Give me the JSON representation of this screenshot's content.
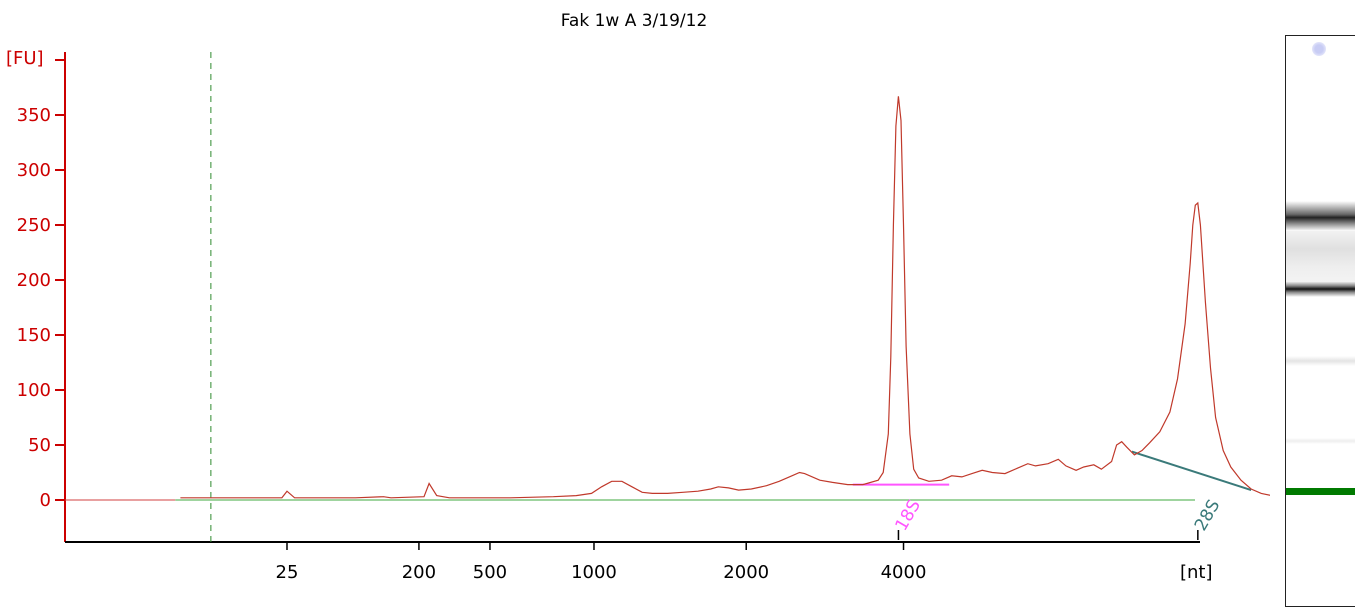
{
  "chart_data": {
    "type": "line",
    "title": "Fak 1w A 3/19/12",
    "ylabel": "[FU]",
    "xlabel": "[nt]",
    "ylim": [
      -37,
      372
    ],
    "y_ticks": [
      0,
      50,
      100,
      150,
      200,
      250,
      300,
      350
    ],
    "x_ticks": [
      "25",
      "200",
      "500",
      "1000",
      "2000",
      "4000"
    ],
    "x_tick_time_s": [
      24.2,
      29.4,
      32.2,
      36.3,
      42.3,
      48.5
    ],
    "xlim_time_s": [
      17.5,
      59.2
    ],
    "x_axis_unit": "time-scale (nt labels at ladder positions)",
    "series": [
      {
        "color": "#c0392b",
        "points": [
          [
            20.0,
            2
          ],
          [
            24.0,
            2
          ],
          [
            24.2,
            8
          ],
          [
            24.5,
            2
          ],
          [
            26.9,
            2
          ],
          [
            28.0,
            3
          ],
          [
            28.3,
            2
          ],
          [
            29.6,
            3
          ],
          [
            29.8,
            15
          ],
          [
            30.1,
            4
          ],
          [
            30.6,
            2
          ],
          [
            33.0,
            2
          ],
          [
            34.7,
            3
          ],
          [
            35.6,
            4
          ],
          [
            36.2,
            6
          ],
          [
            36.6,
            12
          ],
          [
            37.0,
            17
          ],
          [
            37.4,
            17
          ],
          [
            37.8,
            12
          ],
          [
            38.2,
            7
          ],
          [
            38.6,
            6
          ],
          [
            39.2,
            6
          ],
          [
            39.8,
            7
          ],
          [
            40.4,
            8
          ],
          [
            40.9,
            10
          ],
          [
            41.2,
            12
          ],
          [
            41.6,
            11
          ],
          [
            42.0,
            9
          ],
          [
            42.5,
            10
          ],
          [
            43.1,
            13
          ],
          [
            43.6,
            17
          ],
          [
            44.1,
            22
          ],
          [
            44.4,
            25
          ],
          [
            44.6,
            24
          ],
          [
            45.2,
            18
          ],
          [
            45.7,
            16
          ],
          [
            46.3,
            14
          ],
          [
            46.9,
            14
          ],
          [
            47.5,
            18
          ],
          [
            47.7,
            25
          ],
          [
            47.9,
            60
          ],
          [
            48.0,
            130
          ],
          [
            48.1,
            250
          ],
          [
            48.2,
            340
          ],
          [
            48.3,
            367
          ],
          [
            48.4,
            345
          ],
          [
            48.5,
            250
          ],
          [
            48.6,
            140
          ],
          [
            48.75,
            60
          ],
          [
            48.9,
            28
          ],
          [
            49.1,
            20
          ],
          [
            49.5,
            17
          ],
          [
            50.0,
            18
          ],
          [
            50.4,
            22
          ],
          [
            50.8,
            21
          ],
          [
            51.2,
            24
          ],
          [
            51.6,
            27
          ],
          [
            52.0,
            25
          ],
          [
            52.5,
            24
          ],
          [
            53.0,
            29
          ],
          [
            53.4,
            33
          ],
          [
            53.7,
            31
          ],
          [
            54.2,
            33
          ],
          [
            54.6,
            37
          ],
          [
            54.9,
            31
          ],
          [
            55.3,
            27
          ],
          [
            55.6,
            30
          ],
          [
            56.0,
            32
          ],
          [
            56.3,
            28
          ],
          [
            56.7,
            35
          ],
          [
            56.9,
            50
          ],
          [
            57.1,
            53
          ],
          [
            57.3,
            48
          ],
          [
            57.6,
            41
          ],
          [
            57.9,
            45
          ],
          [
            58.2,
            52
          ],
          [
            58.6,
            62
          ],
          [
            59.0,
            80
          ],
          [
            59.3,
            110
          ],
          [
            59.6,
            160
          ],
          [
            59.8,
            215
          ],
          [
            59.9,
            250
          ],
          [
            60.0,
            268
          ],
          [
            60.1,
            270
          ],
          [
            60.2,
            250
          ],
          [
            60.4,
            180
          ],
          [
            60.6,
            120
          ],
          [
            60.8,
            75
          ],
          [
            61.1,
            45
          ],
          [
            61.4,
            30
          ],
          [
            61.8,
            18
          ],
          [
            62.2,
            10
          ],
          [
            62.6,
            6
          ],
          [
            63.0,
            4
          ],
          [
            63.3,
            3
          ],
          [
            63.6,
            3
          ],
          [
            64.0,
            2
          ],
          [
            65.0,
            1
          ]
        ]
      }
    ],
    "peaks": [
      {
        "label": "18S",
        "time_s": 48.3,
        "baseline_fu": [
          14,
          14
        ],
        "baseline_time_s": [
          46.5,
          50.3
        ],
        "color": "#ff55ff"
      },
      {
        "label": "28S",
        "time_s": 60.1,
        "baseline_fu": [
          44,
          9
        ],
        "baseline_time_s": [
          57.5,
          62.2
        ],
        "color": "#3a7a7a"
      }
    ],
    "baseline_line": {
      "fu": 0,
      "color": "#66bb66"
    },
    "marker_lines_time_s": [
      21.2,
      67.7
    ],
    "grid": false,
    "legend": "none"
  },
  "gel": {
    "marker_color": "#c8ccf4",
    "lower_marker_color": "#007a00"
  }
}
